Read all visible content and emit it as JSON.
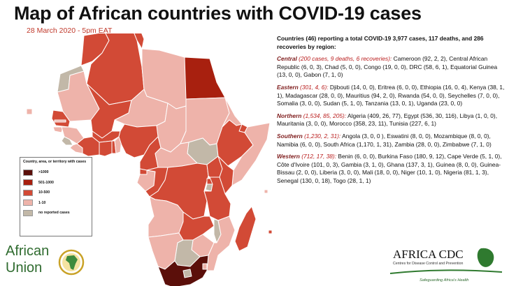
{
  "header": {
    "title": "Map of African countries with COVID-19 cases",
    "subtitle": "28 March 2020 - 5pm EAT"
  },
  "legend": {
    "title": "Country, area, or territory with cases",
    "items": [
      {
        "label": ">1000",
        "color": "#5b0f0a"
      },
      {
        "label": "501-1000",
        "color": "#a8200f"
      },
      {
        "label": "10-500",
        "color": "#d24a36"
      },
      {
        "label": "1-10",
        "color": "#eeb3aa"
      },
      {
        "label": "no reported cases",
        "color": "#c2b8a8"
      }
    ]
  },
  "panel": {
    "intro": "Countries (46) reporting a total COVID-19 3,977 cases, 117 deaths, and 286 recoveries by region:",
    "regions": [
      {
        "name": "Central",
        "summary": " (200 cases, 9 deaths, 6 recoveries):",
        "countries": "  Cameroon (92, 2, 2), Central African Republic (6, 0, 3), Chad (5, 0, 0), Congo (19, 0, 0), DRC (58, 6, 1), Equatorial Guinea (13, 0, 0), Gabon (7, 1, 0)"
      },
      {
        "name": "Eastern",
        "summary": " (301, 4, 6):",
        "countries": " Djibouti (14, 0, 0), Eritrea (6, 0, 0), Ethiopia (16, 0, 4), Kenya (38, 1, 1), Madagascar (28, 0, 0), Mauritius (94, 2, 0), Rwanda (54, 0, 0), Seychelles (7, 0, 0), Somalia (3, 0, 0), Sudan (5, 1, 0), Tanzania (13, 0, 1), Uganda (23, 0, 0)"
      },
      {
        "name": "Northern",
        "summary": " (1,534, 85, 205):",
        "countries": " Algeria (409, 26, 77), Egypt (536, 30, 116), Libya (1, 0, 0), Mauritania (3, 0, 0), Morocco (358, 23, 11), Tunisia (227, 6, 1)"
      },
      {
        "name": "Southern",
        "summary": " (1,230, 2, 31):",
        "countries": " Angola (3, 0, 0 ), Eswatini (8, 0, 0), Mozambique (8, 0, 0),  Namibia (6, 0, 0), South Africa (1,170, 1, 31), Zambia (28, 0, 0), Zimbabwe (7, 1, 0)"
      },
      {
        "name": "Western",
        "summary": " (712, 17, 38):",
        "countries": " Benin (6, 0, 0), Burkina Faso (180, 9, 12), Cape Verde (5, 1, 0), Côte d'Ivoire (101, 0, 3), Gambia (3, 1, 0), Ghana (137, 3, 1), Guinea (8, 0, 0), Guinea-Bissau (2, 0, 0), Liberia (3, 0, 0), Mali (18, 0, 0), Niger (10, 1, 0), Nigeria (81, 1, 3), Senegal (130, 0, 18), Togo (28, 1, 1)"
      }
    ]
  },
  "logos": {
    "african_union": [
      "African",
      "Union"
    ],
    "africa_cdc": {
      "name": "AFRICA CDC",
      "full_name": "Centres for Disease Control and Prevention",
      "tagline": "Safeguarding Africa's Health"
    }
  },
  "map": {
    "outline_color": "#ffffff",
    "water_color": "#ffffff",
    "regions": [
      {
        "id": "morocco",
        "color": "#d24a36"
      },
      {
        "id": "algeria",
        "color": "#d24a36"
      },
      {
        "id": "tunisia",
        "color": "#d24a36"
      },
      {
        "id": "libya",
        "color": "#eeb3aa"
      },
      {
        "id": "egypt",
        "color": "#a8200f"
      },
      {
        "id": "western-sahara",
        "color": "#c2b8a8"
      },
      {
        "id": "mauritania",
        "color": "#eeb3aa"
      },
      {
        "id": "mali",
        "color": "#d24a36"
      },
      {
        "id": "niger",
        "color": "#eeb3aa"
      },
      {
        "id": "chad",
        "color": "#eeb3aa"
      },
      {
        "id": "sudan",
        "color": "#eeb3aa"
      },
      {
        "id": "south-sudan",
        "color": "#c2b8a8"
      },
      {
        "id": "eritrea",
        "color": "#eeb3aa"
      },
      {
        "id": "ethiopia",
        "color": "#d24a36"
      },
      {
        "id": "djibouti",
        "color": "#d24a36"
      },
      {
        "id": "somalia",
        "color": "#eeb3aa"
      },
      {
        "id": "senegal",
        "color": "#d24a36"
      },
      {
        "id": "gambia",
        "color": "#eeb3aa"
      },
      {
        "id": "guinea-bissau",
        "color": "#eeb3aa"
      },
      {
        "id": "guinea",
        "color": "#eeb3aa"
      },
      {
        "id": "sierra-leone",
        "color": "#c2b8a8"
      },
      {
        "id": "liberia",
        "color": "#eeb3aa"
      },
      {
        "id": "cote-divoire",
        "color": "#d24a36"
      },
      {
        "id": "burkina-faso",
        "color": "#d24a36"
      },
      {
        "id": "ghana",
        "color": "#d24a36"
      },
      {
        "id": "togo",
        "color": "#d24a36"
      },
      {
        "id": "benin",
        "color": "#eeb3aa"
      },
      {
        "id": "nigeria",
        "color": "#d24a36"
      },
      {
        "id": "cameroon",
        "color": "#d24a36"
      },
      {
        "id": "central-african-republic",
        "color": "#eeb3aa"
      },
      {
        "id": "equatorial-guinea",
        "color": "#d24a36"
      },
      {
        "id": "gabon",
        "color": "#eeb3aa"
      },
      {
        "id": "congo",
        "color": "#d24a36"
      },
      {
        "id": "drc",
        "color": "#d24a36"
      },
      {
        "id": "uganda",
        "color": "#d24a36"
      },
      {
        "id": "kenya",
        "color": "#d24a36"
      },
      {
        "id": "rwanda",
        "color": "#d24a36"
      },
      {
        "id": "burundi",
        "color": "#c2b8a8"
      },
      {
        "id": "tanzania",
        "color": "#d24a36"
      },
      {
        "id": "angola",
        "color": "#eeb3aa"
      },
      {
        "id": "zambia",
        "color": "#d24a36"
      },
      {
        "id": "malawi",
        "color": "#c2b8a8"
      },
      {
        "id": "mozambique",
        "color": "#eeb3aa"
      },
      {
        "id": "zimbabwe",
        "color": "#eeb3aa"
      },
      {
        "id": "namibia",
        "color": "#eeb3aa"
      },
      {
        "id": "botswana",
        "color": "#c2b8a8"
      },
      {
        "id": "south-africa",
        "color": "#5b0f0a"
      },
      {
        "id": "eswatini",
        "color": "#eeb3aa"
      },
      {
        "id": "lesotho",
        "color": "#c2b8a8"
      },
      {
        "id": "madagascar",
        "color": "#d24a36"
      },
      {
        "id": "cape-verde",
        "color": "#eeb3aa"
      },
      {
        "id": "seychelles",
        "color": "#eeb3aa"
      },
      {
        "id": "mauritius",
        "color": "#d24a36"
      }
    ]
  }
}
